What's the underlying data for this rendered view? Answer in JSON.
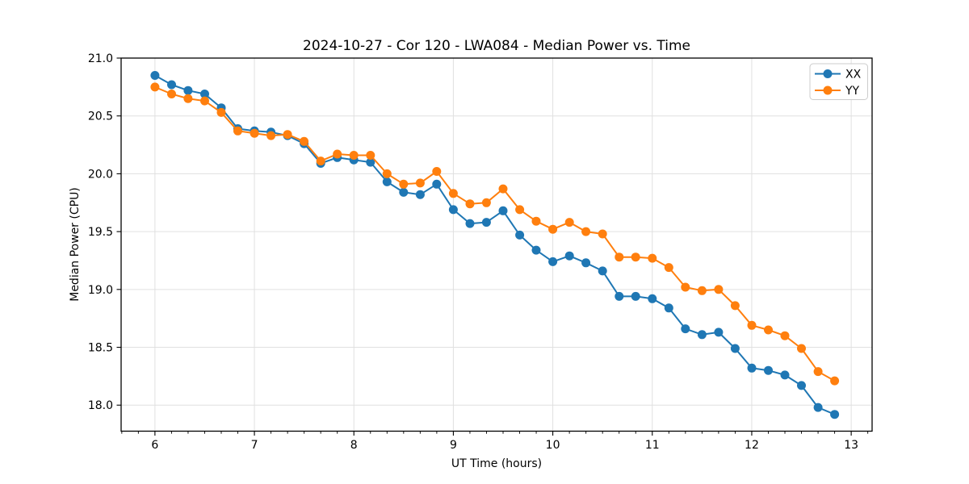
{
  "figure": {
    "background": "#ffffff"
  },
  "chart_data": {
    "type": "line",
    "title": "2024-10-27 - Cor 120 - LWA084 - Median Power vs. Time",
    "xlabel": "UT Time (hours)",
    "ylabel": "Median Power (CPU)",
    "xlim": [
      5.66,
      13.21
    ],
    "ylim": [
      17.775,
      21.0
    ],
    "grid": true,
    "grid_color": "#e0e0e0",
    "legend": {
      "position": "upper right",
      "entries": [
        "XX",
        "YY"
      ]
    },
    "xticks": [
      {
        "value": 6,
        "label": "6"
      },
      {
        "value": 7,
        "label": "7"
      },
      {
        "value": 8,
        "label": "8"
      },
      {
        "value": 9,
        "label": "9"
      },
      {
        "value": 10,
        "label": "10"
      },
      {
        "value": 11,
        "label": "11"
      },
      {
        "value": 12,
        "label": "12"
      },
      {
        "value": 13,
        "label": "13"
      }
    ],
    "xtick_minor_step": 0.166667,
    "yticks": [
      {
        "value": 18.0,
        "label": "18.0"
      },
      {
        "value": 18.5,
        "label": "18.5"
      },
      {
        "value": 19.0,
        "label": "19.0"
      },
      {
        "value": 19.5,
        "label": "19.5"
      },
      {
        "value": 20.0,
        "label": "20.0"
      },
      {
        "value": 20.5,
        "label": "20.5"
      },
      {
        "value": 21.0,
        "label": "21.0"
      }
    ],
    "x": [
      6.0,
      6.167,
      6.333,
      6.5,
      6.667,
      6.833,
      7.0,
      7.167,
      7.333,
      7.5,
      7.667,
      7.833,
      8.0,
      8.167,
      8.333,
      8.5,
      8.667,
      8.833,
      9.0,
      9.167,
      9.333,
      9.5,
      9.667,
      9.833,
      10.0,
      10.167,
      10.333,
      10.5,
      10.667,
      10.833,
      11.0,
      11.167,
      11.333,
      11.5,
      11.667,
      11.833,
      12.0,
      12.167,
      12.333,
      12.5,
      12.667,
      12.833
    ],
    "series": [
      {
        "name": "XX",
        "color": "#1f77b4",
        "marker": "circle",
        "values": [
          20.85,
          20.77,
          20.72,
          20.69,
          20.57,
          20.39,
          20.37,
          20.36,
          20.33,
          20.26,
          20.09,
          20.14,
          20.12,
          20.1,
          19.93,
          19.84,
          19.82,
          19.91,
          19.69,
          19.57,
          19.58,
          19.68,
          19.47,
          19.34,
          19.24,
          19.29,
          19.23,
          19.16,
          18.94,
          18.94,
          18.92,
          18.84,
          18.66,
          18.61,
          18.63,
          18.49,
          18.32,
          18.3,
          18.26,
          18.17,
          17.98,
          17.92
        ]
      },
      {
        "name": "YY",
        "color": "#ff7f0e",
        "marker": "circle",
        "values": [
          20.75,
          20.69,
          20.65,
          20.63,
          20.53,
          20.37,
          20.35,
          20.33,
          20.34,
          20.28,
          20.11,
          20.17,
          20.16,
          20.16,
          20.0,
          19.91,
          19.92,
          20.02,
          19.83,
          19.74,
          19.75,
          19.87,
          19.69,
          19.59,
          19.52,
          19.58,
          19.5,
          19.48,
          19.28,
          19.28,
          19.27,
          19.19,
          19.02,
          18.99,
          19.0,
          18.86,
          18.69,
          18.65,
          18.6,
          18.49,
          18.29,
          18.21
        ]
      }
    ]
  }
}
